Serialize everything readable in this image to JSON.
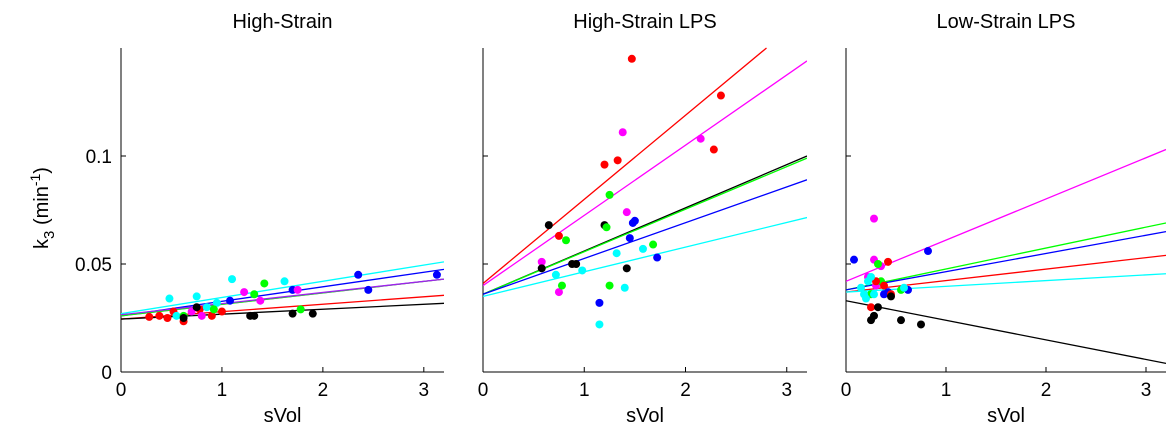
{
  "figure": {
    "ylabel": "k3 (min-1)",
    "ylabel_main": "k",
    "ylabel_sub": "3",
    "ylabel_unit": " (min",
    "ylabel_sup": "-1",
    "ylabel_close": ")"
  },
  "chart_data": [
    {
      "type": "scatter",
      "title": "High-Strain",
      "xlabel": "sVol",
      "ylabel": "k3 (min-1)",
      "xlim": [
        0,
        3.2
      ],
      "ylim": [
        0,
        0.15
      ],
      "xticks": [
        "0",
        "1",
        "2",
        "3"
      ],
      "yticks": [
        "0",
        "0.05",
        "0.1"
      ],
      "series": [
        {
          "color": "#ff0000",
          "points": [
            [
              0.28,
              0.0255
            ],
            [
              0.38,
              0.026
            ],
            [
              0.46,
              0.025
            ],
            [
              0.52,
              0.028
            ],
            [
              0.62,
              0.0235
            ],
            [
              0.78,
              0.029
            ],
            [
              0.9,
              0.026
            ],
            [
              1.0,
              0.028
            ]
          ],
          "fit": [
            [
              0,
              0.0245
            ],
            [
              3.2,
              0.0355
            ]
          ]
        },
        {
          "color": "#0000ff",
          "points": [
            [
              1.08,
              0.033
            ],
            [
              1.7,
              0.038
            ],
            [
              2.35,
              0.045
            ],
            [
              2.45,
              0.038
            ],
            [
              3.13,
              0.045
            ]
          ],
          "fit": [
            [
              0,
              0.026
            ],
            [
              3.2,
              0.0475
            ]
          ]
        },
        {
          "color": "#00ffff",
          "points": [
            [
              0.48,
              0.034
            ],
            [
              0.75,
              0.035
            ],
            [
              0.95,
              0.032
            ],
            [
              1.1,
              0.043
            ],
            [
              1.62,
              0.042
            ],
            [
              0.55,
              0.026
            ],
            [
              0.85,
              0.03
            ]
          ],
          "fit": [
            [
              0,
              0.027
            ],
            [
              3.2,
              0.051
            ]
          ]
        },
        {
          "color": "#ff00ff",
          "points": [
            [
              0.7,
              0.028
            ],
            [
              0.8,
              0.026
            ],
            [
              1.22,
              0.037
            ],
            [
              1.38,
              0.033
            ],
            [
              1.75,
              0.038
            ]
          ],
          "fit": [
            [
              0,
              0.026
            ],
            [
              3.2,
              0.043
            ]
          ]
        },
        {
          "color": "#00ff00",
          "points": [
            [
              0.62,
              0.026
            ],
            [
              0.92,
              0.029
            ],
            [
              1.32,
              0.036
            ],
            [
              1.42,
              0.041
            ],
            [
              1.78,
              0.029
            ]
          ],
          "fit": [
            [
              0,
              0.026
            ],
            [
              3.2,
              0.043
            ]
          ]
        },
        {
          "color": "#000000",
          "points": [
            [
              0.62,
              0.025
            ],
            [
              0.75,
              0.03
            ],
            [
              1.28,
              0.026
            ],
            [
              1.32,
              0.026
            ],
            [
              1.7,
              0.027
            ],
            [
              1.9,
              0.027
            ]
          ],
          "fit": [
            [
              0,
              0.0245
            ],
            [
              3.2,
              0.0318
            ]
          ]
        },
        {
          "color": "#a020f0",
          "points": [],
          "fit": [
            [
              0,
              0.0265
            ],
            [
              3.2,
              0.043
            ]
          ]
        }
      ]
    },
    {
      "type": "scatter",
      "title": "High-Strain LPS",
      "xlabel": "sVol",
      "xlim": [
        0,
        3.2
      ],
      "ylim": [
        0,
        0.15
      ],
      "xticks": [
        "0",
        "1",
        "2",
        "3"
      ],
      "series": [
        {
          "color": "#ff0000",
          "points": [
            [
              0.75,
              0.063
            ],
            [
              1.2,
              0.096
            ],
            [
              1.33,
              0.098
            ],
            [
              1.47,
              0.145
            ],
            [
              2.28,
              0.103
            ],
            [
              2.35,
              0.128
            ]
          ],
          "fit": [
            [
              0,
              0.041
            ],
            [
              2.8,
              0.15
            ]
          ]
        },
        {
          "color": "#ff00ff",
          "points": [
            [
              0.58,
              0.051
            ],
            [
              0.75,
              0.037
            ],
            [
              1.38,
              0.111
            ],
            [
              1.42,
              0.074
            ],
            [
              2.15,
              0.108
            ]
          ],
          "fit": [
            [
              0,
              0.04
            ],
            [
              3.2,
              0.144
            ]
          ]
        },
        {
          "color": "#000000",
          "points": [
            [
              0.58,
              0.048
            ],
            [
              0.65,
              0.068
            ],
            [
              0.88,
              0.05
            ],
            [
              0.92,
              0.05
            ],
            [
              1.2,
              0.068
            ],
            [
              1.42,
              0.048
            ]
          ],
          "fit": [
            [
              0,
              0.036
            ],
            [
              3.2,
              0.1
            ]
          ]
        },
        {
          "color": "#00ff00",
          "points": [
            [
              0.82,
              0.061
            ],
            [
              1.22,
              0.067
            ],
            [
              1.25,
              0.082
            ],
            [
              1.25,
              0.04
            ],
            [
              1.68,
              0.059
            ],
            [
              0.78,
              0.04
            ]
          ],
          "fit": [
            [
              0,
              0.036
            ],
            [
              3.2,
              0.099
            ]
          ]
        },
        {
          "color": "#0000ff",
          "points": [
            [
              1.15,
              0.032
            ],
            [
              1.45,
              0.062
            ],
            [
              1.48,
              0.069
            ],
            [
              1.5,
              0.07
            ],
            [
              1.72,
              0.053
            ]
          ],
          "fit": [
            [
              0,
              0.036
            ],
            [
              3.2,
              0.089
            ]
          ]
        },
        {
          "color": "#00ffff",
          "points": [
            [
              0.72,
              0.045
            ],
            [
              0.98,
              0.047
            ],
            [
              1.15,
              0.022
            ],
            [
              1.32,
              0.055
            ],
            [
              1.4,
              0.039
            ],
            [
              1.58,
              0.057
            ]
          ],
          "fit": [
            [
              0,
              0.035
            ],
            [
              3.2,
              0.0715
            ]
          ]
        }
      ]
    },
    {
      "type": "scatter",
      "title": "Low-Strain LPS",
      "xlabel": "sVol",
      "xlim": [
        0,
        3.2
      ],
      "ylim": [
        0,
        0.15
      ],
      "xticks": [
        "0",
        "1",
        "2",
        "3"
      ],
      "series": [
        {
          "color": "#ff00ff",
          "points": [
            [
              0.28,
              0.071
            ],
            [
              0.28,
              0.052
            ],
            [
              0.3,
              0.04
            ],
            [
              0.35,
              0.049
            ],
            [
              0.22,
              0.044
            ]
          ],
          "fit": [
            [
              0,
              0.042
            ],
            [
              3.2,
              0.103
            ]
          ]
        },
        {
          "color": "#00ff00",
          "points": [
            [
              0.32,
              0.05
            ],
            [
              0.35,
              0.042
            ],
            [
              0.55,
              0.038
            ],
            [
              0.25,
              0.036
            ]
          ],
          "fit": [
            [
              0,
              0.038
            ],
            [
              3.2,
              0.069
            ]
          ]
        },
        {
          "color": "#0000ff",
          "points": [
            [
              0.08,
              0.052
            ],
            [
              0.38,
              0.036
            ],
            [
              0.42,
              0.037
            ],
            [
              0.62,
              0.038
            ],
            [
              0.82,
              0.056
            ]
          ],
          "fit": [
            [
              0,
              0.038
            ],
            [
              3.2,
              0.065
            ]
          ]
        },
        {
          "color": "#ff0000",
          "points": [
            [
              0.25,
              0.03
            ],
            [
              0.3,
              0.042
            ],
            [
              0.38,
              0.04
            ],
            [
              0.42,
              0.051
            ],
            [
              0.45,
              0.036
            ]
          ],
          "fit": [
            [
              0,
              0.037
            ],
            [
              3.2,
              0.054
            ]
          ]
        },
        {
          "color": "#00ffff",
          "points": [
            [
              0.15,
              0.039
            ],
            [
              0.18,
              0.036
            ],
            [
              0.2,
              0.034
            ],
            [
              0.22,
              0.042
            ],
            [
              0.25,
              0.044
            ],
            [
              0.28,
              0.036
            ],
            [
              0.58,
              0.039
            ]
          ],
          "fit": [
            [
              0,
              0.037
            ],
            [
              3.2,
              0.0455
            ]
          ]
        },
        {
          "color": "#000000",
          "points": [
            [
              0.25,
              0.024
            ],
            [
              0.28,
              0.026
            ],
            [
              0.32,
              0.03
            ],
            [
              0.45,
              0.035
            ],
            [
              0.55,
              0.024
            ],
            [
              0.75,
              0.022
            ]
          ],
          "fit": [
            [
              0,
              0.033
            ],
            [
              3.2,
              0.004
            ]
          ]
        }
      ]
    }
  ]
}
